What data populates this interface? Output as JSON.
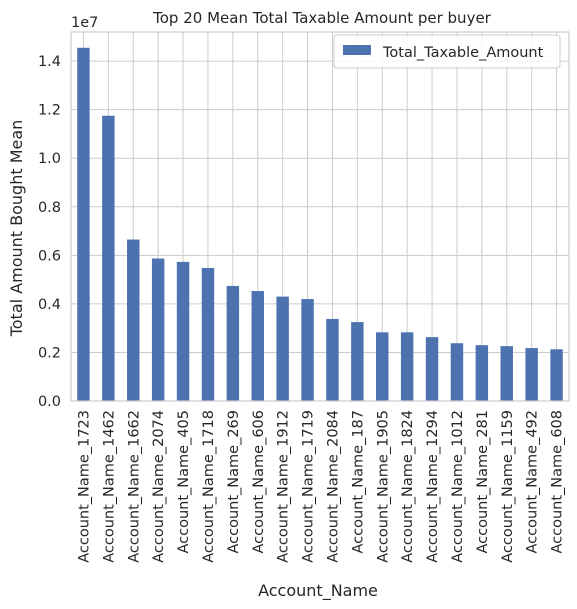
{
  "chart_data": {
    "type": "bar",
    "title": "Top 20 Mean Total Taxable Amount per buyer",
    "xlabel": "Account_Name",
    "ylabel": "Total Amount Bought Mean",
    "y_multiplier_label": "1e7",
    "ylim": [
      0,
      15200000
    ],
    "yticks": [
      0,
      2000000,
      4000000,
      6000000,
      8000000,
      10000000,
      12000000,
      14000000
    ],
    "ytick_labels": [
      "0.0",
      "0.2",
      "0.4",
      "0.6",
      "0.8",
      "1.0",
      "1.2",
      "1.4"
    ],
    "grid": true,
    "legend_position": "top-right",
    "categories": [
      "Account_Name_1723",
      "Account_Name_1462",
      "Account_Name_1662",
      "Account_Name_2074",
      "Account_Name_405",
      "Account_Name_1718",
      "Account_Name_269",
      "Account_Name_606",
      "Account_Name_1912",
      "Account_Name_1719",
      "Account_Name_2084",
      "Account_Name_187",
      "Account_Name_1905",
      "Account_Name_1824",
      "Account_Name_1294",
      "Account_Name_1012",
      "Account_Name_281",
      "Account_Name_1159",
      "Account_Name_492",
      "Account_Name_608"
    ],
    "series": [
      {
        "name": "Total_Taxable_Amount",
        "color": "#4c72b0",
        "values": [
          14550000,
          11750000,
          6650000,
          5870000,
          5730000,
          5480000,
          4740000,
          4530000,
          4300000,
          4200000,
          3380000,
          3250000,
          2830000,
          2830000,
          2630000,
          2380000,
          2300000,
          2260000,
          2180000,
          2130000
        ]
      }
    ]
  }
}
